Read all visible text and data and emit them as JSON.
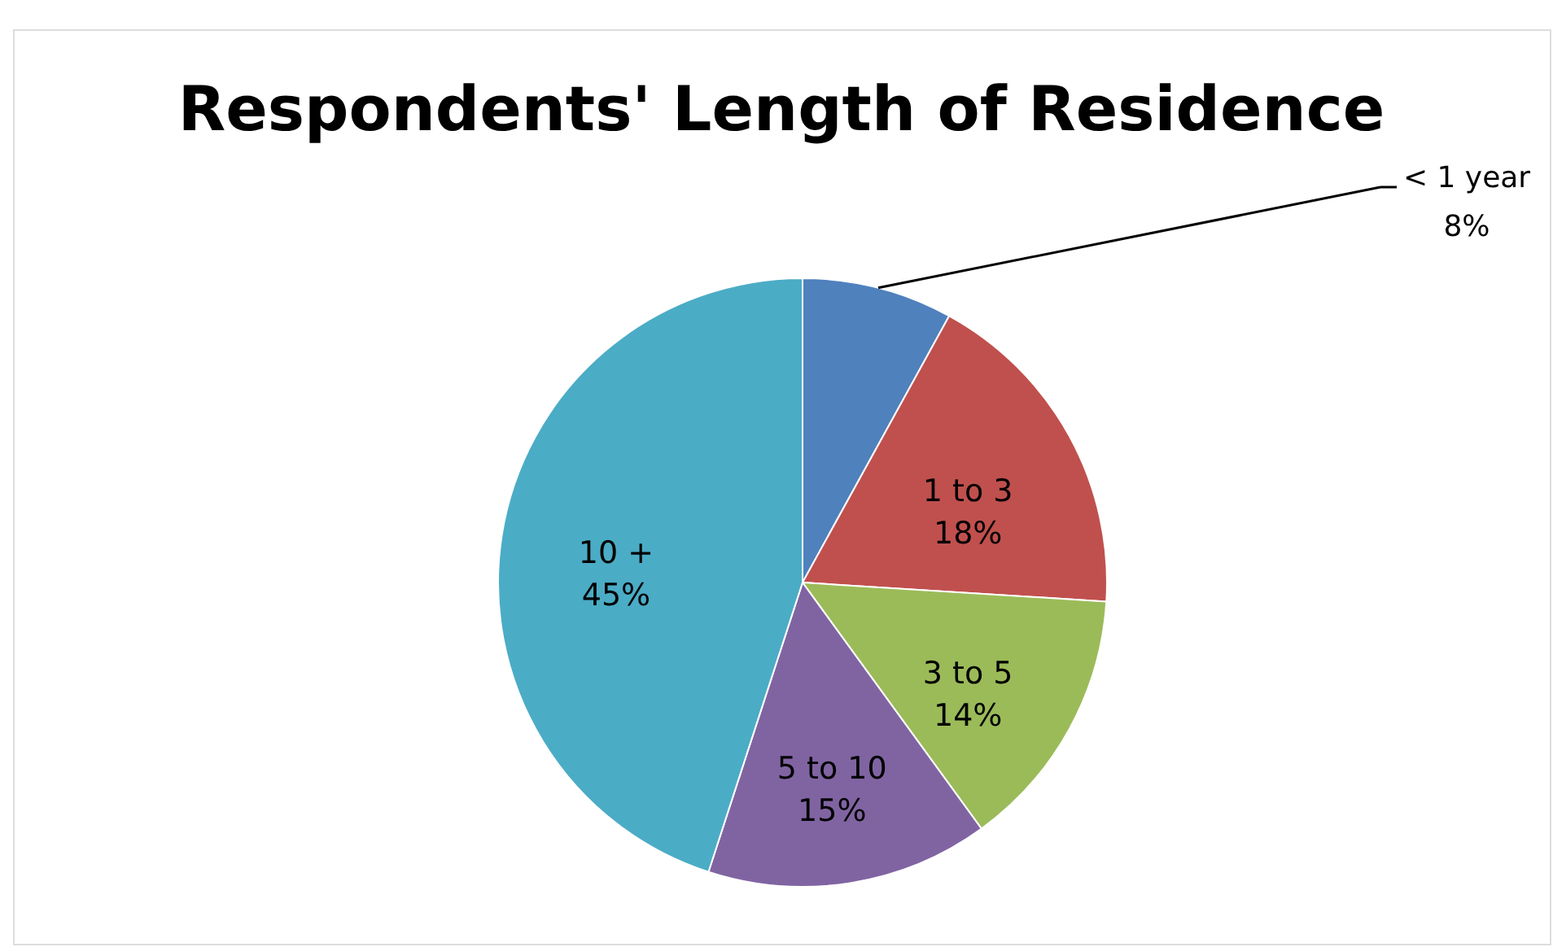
{
  "chart_data": {
    "type": "pie",
    "title": "Respondents' Length of Residence",
    "categories": [
      "< 1 year",
      "1 to 3",
      "3 to 5",
      "5 to 10",
      "10 +"
    ],
    "values": [
      8,
      18,
      14,
      15,
      45
    ],
    "value_labels": [
      "8%",
      "18%",
      "14%",
      "15%",
      "45%"
    ],
    "colors": [
      "#4f81bd",
      "#c0504d",
      "#9bbb59",
      "#8064a2",
      "#4bacc6"
    ]
  }
}
